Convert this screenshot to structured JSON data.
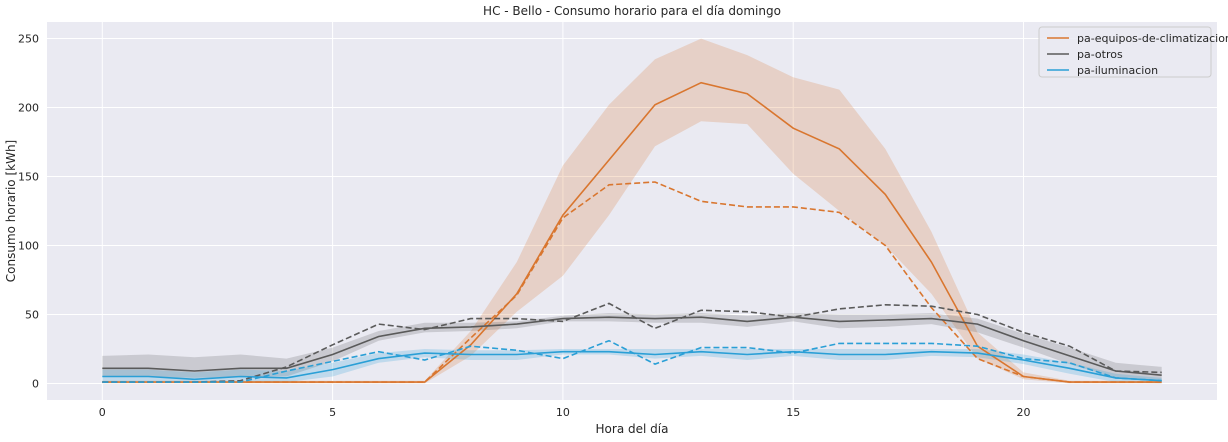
{
  "chart_data": {
    "type": "line",
    "title": "HC - Bello - Consumo horario para el día domingo",
    "xlabel": "Hora del día",
    "ylabel": "Consumo horario [kWh]",
    "xlim": [
      -1.2,
      24.2
    ],
    "ylim": [
      -12,
      262
    ],
    "xticks": [
      0,
      5,
      10,
      15,
      20
    ],
    "yticks": [
      0,
      50,
      100,
      150,
      200,
      250
    ],
    "grid": true,
    "legend_position": "top-right",
    "x": [
      0,
      1,
      2,
      3,
      4,
      5,
      6,
      7,
      8,
      9,
      10,
      11,
      12,
      13,
      14,
      15,
      16,
      17,
      18,
      19,
      20,
      21,
      22,
      23
    ],
    "series": [
      {
        "name": "pa-equipos-de-climatizacion",
        "color": "#d9762f",
        "mean": [
          1,
          1,
          1,
          1,
          1,
          1,
          1,
          1,
          28,
          65,
          122,
          162,
          202,
          218,
          210,
          185,
          170,
          137,
          88,
          27,
          5,
          1,
          1,
          1
        ],
        "lower": [
          0,
          0,
          0,
          0,
          0,
          0,
          0,
          0,
          20,
          52,
          78,
          122,
          172,
          190,
          188,
          152,
          125,
          100,
          65,
          18,
          3,
          0,
          0,
          0
        ],
        "upper": [
          2,
          2,
          2,
          2,
          2,
          2,
          2,
          2,
          38,
          88,
          158,
          202,
          235,
          250,
          238,
          222,
          213,
          170,
          110,
          37,
          8,
          2,
          2,
          2
        ],
        "reference": [
          1,
          1,
          1,
          1,
          1,
          1,
          1,
          1,
          33,
          64,
          120,
          144,
          146,
          132,
          128,
          128,
          124,
          100,
          55,
          18,
          5,
          1,
          1,
          1
        ]
      },
      {
        "name": "pa-otros",
        "color": "#5a5a5a",
        "mean": [
          11,
          11,
          9,
          11,
          11,
          21,
          34,
          40,
          41,
          43,
          47,
          48,
          47,
          48,
          45,
          48,
          45,
          46,
          47,
          43,
          31,
          20,
          9,
          6
        ],
        "lower": [
          5,
          5,
          4,
          5,
          5,
          16,
          31,
          37,
          38,
          40,
          45,
          45,
          44,
          44,
          41,
          45,
          40,
          41,
          43,
          37,
          26,
          14,
          4,
          2
        ],
        "upper": [
          20,
          21,
          19,
          21,
          18,
          26,
          38,
          44,
          44,
          45,
          49,
          51,
          50,
          51,
          49,
          51,
          50,
          50,
          51,
          47,
          36,
          26,
          15,
          12
        ],
        "reference": [
          1,
          1,
          1,
          2,
          12,
          28,
          43,
          39,
          47,
          47,
          45,
          58,
          40,
          53,
          52,
          48,
          54,
          57,
          56,
          50,
          37,
          27,
          9,
          8
        ]
      },
      {
        "name": "pa-iluminacion",
        "color": "#2a9fd6",
        "mean": [
          5,
          5,
          3,
          5,
          4,
          10,
          18,
          22,
          21,
          21,
          23,
          23,
          21,
          23,
          21,
          23,
          21,
          21,
          23,
          22,
          17,
          11,
          4,
          2
        ],
        "lower": [
          1,
          1,
          1,
          1,
          1,
          5,
          15,
          19,
          17,
          17,
          21,
          21,
          18,
          20,
          17,
          20,
          17,
          17,
          20,
          19,
          14,
          7,
          1,
          0
        ],
        "upper": [
          10,
          10,
          8,
          10,
          9,
          15,
          22,
          25,
          24,
          24,
          25,
          25,
          25,
          25,
          25,
          25,
          25,
          25,
          25,
          25,
          21,
          15,
          7,
          4
        ],
        "reference": [
          1,
          1,
          1,
          1,
          9,
          16,
          23,
          17,
          27,
          24,
          18,
          31,
          14,
          26,
          26,
          22,
          29,
          29,
          29,
          27,
          18,
          15,
          4,
          2
        ]
      }
    ]
  }
}
